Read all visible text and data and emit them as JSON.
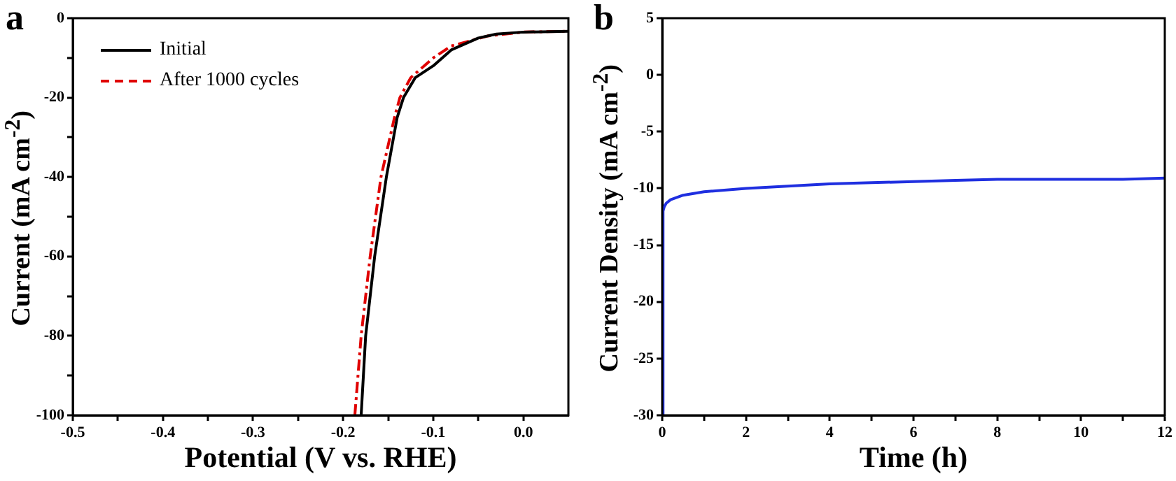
{
  "chart_data": [
    {
      "type": "line",
      "title": "a",
      "xlabel": "Potential (V vs. RHE)",
      "ylabel": "Current (mA cm$^{-2}$)",
      "legend": "top left",
      "grid": false,
      "marker": "none",
      "xlim": [
        -0.5,
        0.05
      ],
      "xticks": [
        -0.5,
        {
          "value": -0.45,
          "label": null
        },
        -0.4,
        {
          "value": -0.35,
          "label": null
        },
        -0.3,
        {
          "value": -0.25,
          "label": null
        },
        -0.2,
        {
          "value": -0.15,
          "label": null
        },
        -0.1,
        {
          "value": -0.05,
          "label": null
        },
        {
          "value": 0,
          "label": "0.0"
        }
      ],
      "ylim": [
        -100,
        0
      ],
      "yticks": [
        -100,
        {
          "value": -90,
          "label": null
        },
        -80,
        {
          "value": -70,
          "label": null
        },
        -60,
        {
          "value": -50,
          "label": null
        },
        -40,
        {
          "value": -30,
          "label": null
        },
        -20,
        {
          "value": -10,
          "label": null
        },
        0
      ],
      "series": [
        {
          "name": "Initial",
          "color": "#000000",
          "line_style": "solid",
          "x": [
            -0.18,
            -0.175,
            -0.165,
            -0.152,
            -0.14,
            -0.133,
            -0.12,
            -0.1,
            -0.08,
            -0.05,
            -0.03,
            0,
            0.05
          ],
          "values": [
            -100,
            -80,
            -60,
            -40,
            -25,
            -20,
            -15,
            -12,
            -8,
            -5,
            -4,
            -3.5,
            -3.3
          ]
        },
        {
          "name": "After 1000 cycles",
          "color": "#e00000",
          "line_style": "dashed",
          "x": [
            -0.187,
            -0.18,
            -0.17,
            -0.158,
            -0.143,
            -0.137,
            -0.125,
            -0.1,
            -0.08,
            -0.04,
            0,
            0.05
          ],
          "values": [
            -100,
            -80,
            -60,
            -40,
            -25,
            -20,
            -15,
            -10,
            -7,
            -4.5,
            -3.5,
            -3.3
          ]
        }
      ]
    },
    {
      "type": "line",
      "title": "b",
      "xlabel": "Time (h)",
      "ylabel": "Current Density (mA cm$^{-2}$)",
      "grid": false,
      "marker": "none",
      "xlim": [
        0,
        12
      ],
      "xticks": [
        0,
        {
          "value": 1,
          "label": null
        },
        2,
        {
          "value": 3,
          "label": null
        },
        4,
        {
          "value": 5,
          "label": null
        },
        6,
        {
          "value": 7,
          "label": null
        },
        8,
        {
          "value": 9,
          "label": null
        },
        10,
        {
          "value": 11,
          "label": null
        },
        12
      ],
      "ylim": [
        -30,
        5
      ],
      "yticks": [
        -30,
        -25,
        -20,
        -15,
        -10,
        -5,
        0,
        5
      ],
      "series": [
        {
          "color": "#1f2fe0",
          "line_style": "solid",
          "x": [
            0,
            0.02,
            0.05,
            0.1,
            0.2,
            0.5,
            1,
            2,
            3,
            4,
            5,
            6,
            7,
            8,
            9,
            10,
            11,
            12
          ],
          "values": [
            -30,
            -12,
            -11.6,
            -11.3,
            -11,
            -10.6,
            -10.3,
            -10,
            -9.8,
            -9.6,
            -9.5,
            -9.4,
            -9.3,
            -9.2,
            -9.2,
            -9.2,
            -9.2,
            -9.1
          ]
        }
      ]
    }
  ]
}
